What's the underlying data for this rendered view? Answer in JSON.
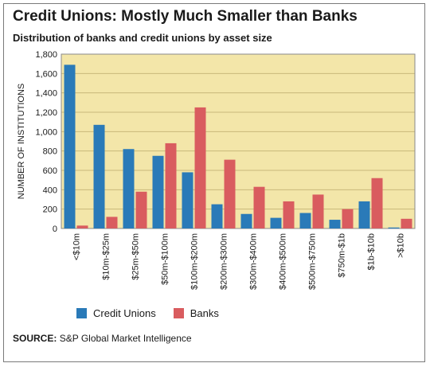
{
  "title": "Credit Unions: Mostly Much Smaller than Banks",
  "subtitle": "Distribution of banks and credit unions by asset size",
  "source_label": "SOURCE:",
  "source_text": "S&P Global Market Intelligence",
  "colors": {
    "plot_bg": "#f3e6a9",
    "credit_unions": "#2a7ab8",
    "banks": "#d95c5f",
    "grid": "#c9b87a"
  },
  "chart_data": {
    "type": "bar",
    "title": "Credit Unions: Mostly Much Smaller than Banks",
    "subtitle": "Distribution of banks and credit unions by asset size",
    "xlabel": "",
    "ylabel": "NUMBER OF INSTITUTIONS",
    "ylim": [
      0,
      1800
    ],
    "yticks": [
      0,
      200,
      400,
      600,
      800,
      1000,
      1200,
      1400,
      1600,
      1800
    ],
    "ytick_labels": [
      "0",
      "200",
      "400",
      "600",
      "800",
      "1,000",
      "1,200",
      "1,400",
      "1,600",
      "1,800"
    ],
    "grid": true,
    "legend_position": "bottom-left",
    "categories": [
      "<$10m",
      "$10m-$25m",
      "$25m-$50m",
      "$50m-$100m",
      "$100m-$200m",
      "$200m-$300m",
      "$300m-$400m",
      "$400m-$500m",
      "$500m-$750m",
      "$750m-$1b",
      "$1b-$10b",
      ">$10b"
    ],
    "series": [
      {
        "name": "Credit Unions",
        "values": [
          1690,
          1070,
          820,
          750,
          580,
          250,
          150,
          110,
          160,
          90,
          280,
          10
        ]
      },
      {
        "name": "Banks",
        "values": [
          30,
          120,
          380,
          880,
          1250,
          710,
          430,
          280,
          350,
          200,
          520,
          100
        ]
      }
    ]
  }
}
